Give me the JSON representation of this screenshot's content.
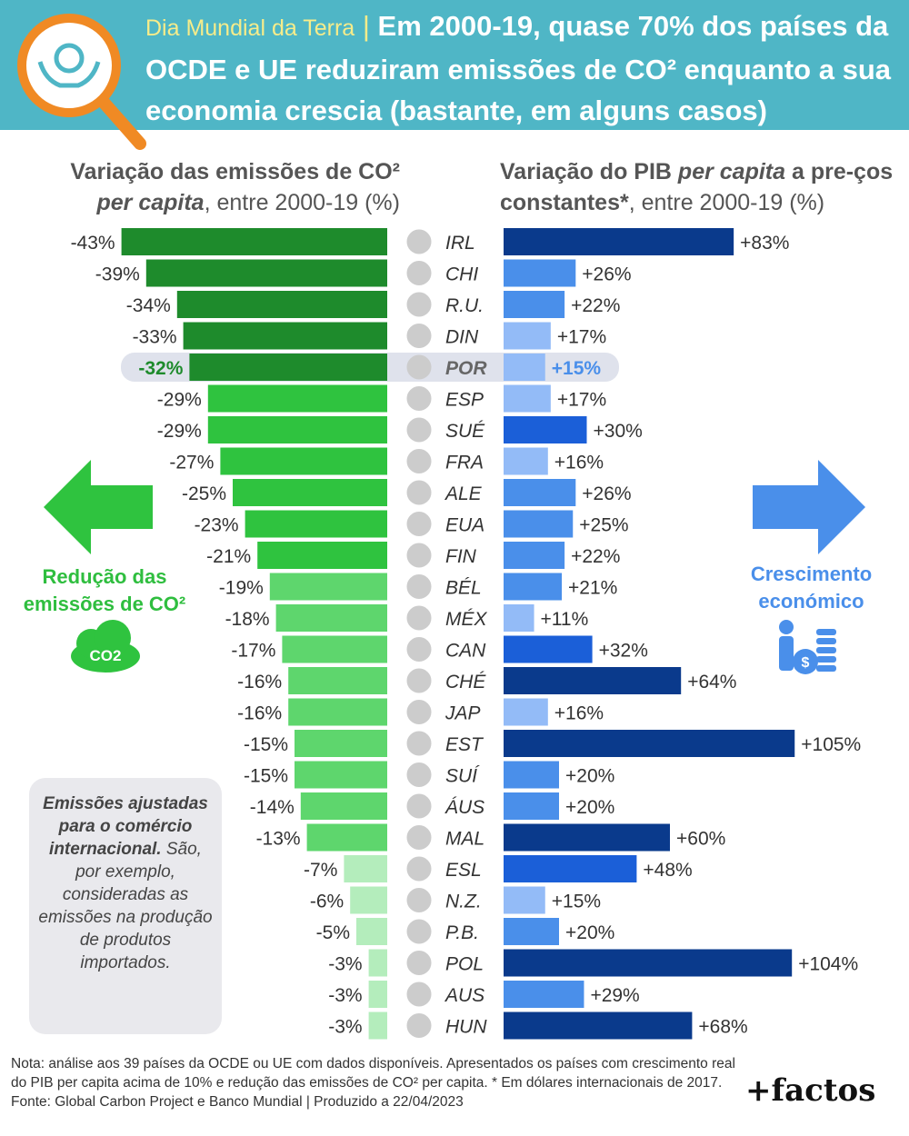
{
  "header": {
    "tag": "Dia Mundial da Terra",
    "separator": "|",
    "title": "Em 2000-19, quase 70% dos países da OCDE e UE reduziram emissões de CO² enquanto a sua economia crescia (bastante, em alguns casos)"
  },
  "left_title": {
    "part1": "Variação das emissões de CO²",
    "part2": "per capita",
    "part3": ", entre 2000-19 (%)"
  },
  "right_title": {
    "part1": "Variação do PIB ",
    "part2": "per capita",
    "part3": " a pre-ços constantes*",
    "part4": ", entre 2000-19 (%)"
  },
  "left_label": "Redução das emissões de CO²",
  "co2_badge": "CO2",
  "right_label": "Crescimento económico",
  "note": {
    "bold": "Emissões ajustadas para o comércio internacional.",
    "text": "São, por exemplo, consideradas as emissões na produção de produtos importados."
  },
  "footnote": {
    "line": "Nota: análise aos 39 países da OCDE ou UE com dados disponíveis. Apresentados os países com crescimento real do PIB per capita acima de 10% e redução das emissões de CO² per capita. * Em dólares internacionais de 2017. Fonte: Global Carbon Project e Banco Mundial | Produzido a 22/04/2023"
  },
  "brand": "+factos",
  "colors": {
    "header_bg": "#4fb6c6",
    "green_dark": "#1e8b2c",
    "green_mid": "#2fc33f",
    "green_light": "#5ed66d",
    "green_pale": "#b4edbc",
    "blue_dark": "#0a3a8c",
    "blue_mid": "#1b5fd8",
    "blue_light": "#4a8fea",
    "blue_pale": "#93bbf7",
    "highlight": "#dfe2ec"
  },
  "chart_data": {
    "type": "bar",
    "highlight_country": "POR",
    "categories": [
      "IRL",
      "CHI",
      "R.U.",
      "DIN",
      "POR",
      "ESP",
      "SUÉ",
      "FRA",
      "ALE",
      "EUA",
      "FIN",
      "BÉL",
      "MÉX",
      "CAN",
      "CHÉ",
      "JAP",
      "EST",
      "SUÍ",
      "ÁUS",
      "MAL",
      "ESL",
      "N.Z.",
      "P.B.",
      "POL",
      "AUS",
      "HUN"
    ],
    "series": [
      {
        "name": "Variação das emissões de CO² per capita, entre 2000-19 (%)",
        "values": [
          -43,
          -39,
          -34,
          -33,
          -32,
          -29,
          -29,
          -27,
          -25,
          -23,
          -21,
          -19,
          -18,
          -17,
          -16,
          -16,
          -15,
          -15,
          -14,
          -13,
          -7,
          -6,
          -5,
          -3,
          -3,
          -3
        ],
        "labels": [
          "-43%",
          "-39%",
          "-34%",
          "-33%",
          "-32%",
          "-29%",
          "-29%",
          "-27%",
          "-25%",
          "-23%",
          "-21%",
          "-19%",
          "-18%",
          "-17%",
          "-16%",
          "-16%",
          "-15%",
          "-15%",
          "-14%",
          "-13%",
          "-7%",
          "-6%",
          "-5%",
          "-3%",
          "-3%",
          "-3%"
        ]
      },
      {
        "name": "Variação do PIB per capita a preços constantes*, entre 2000-19 (%)",
        "values": [
          83,
          26,
          22,
          17,
          15,
          17,
          30,
          16,
          26,
          25,
          22,
          21,
          11,
          32,
          64,
          16,
          105,
          20,
          20,
          60,
          48,
          15,
          20,
          104,
          29,
          68
        ],
        "labels": [
          "+83%",
          "+26%",
          "+22%",
          "+17%",
          "+15%",
          "+17%",
          "+30%",
          "+16%",
          "+26%",
          "+25%",
          "+22%",
          "+21%",
          "+11%",
          "+32%",
          "+64%",
          "+16%",
          "+105%",
          "+20%",
          "+20%",
          "+60%",
          "+48%",
          "+15%",
          "+20%",
          "+104%",
          "+29%",
          "+68%"
        ]
      }
    ],
    "flags": [
      "ireland",
      "cyprus",
      "united-kingdom",
      "denmark",
      "portugal",
      "spain",
      "sweden",
      "france",
      "germany",
      "usa",
      "finland",
      "belgium",
      "mexico",
      "canada",
      "czechia",
      "japan",
      "estonia",
      "switzerland",
      "austria",
      "malta",
      "slovenia",
      "new-zealand",
      "netherlands",
      "poland",
      "australia",
      "hungary"
    ]
  }
}
